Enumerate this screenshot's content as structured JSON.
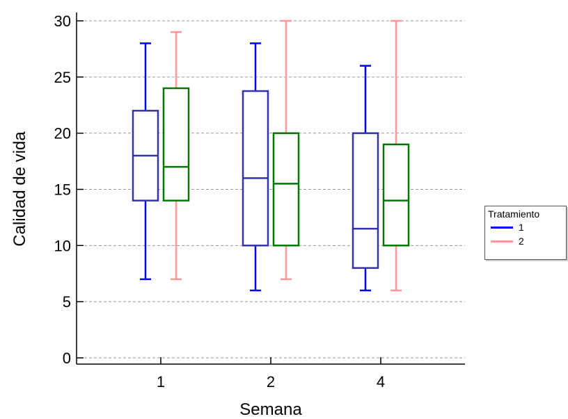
{
  "chart_data": {
    "type": "boxplot",
    "title": "",
    "xlabel": "Semana",
    "ylabel": "Calidad de vida",
    "categories": [
      "1",
      "2",
      "4"
    ],
    "ylim": [
      0,
      30
    ],
    "yticks": [
      0,
      5,
      10,
      15,
      20,
      25,
      30
    ],
    "grid": "horizontal dashed",
    "legend": {
      "title": "Tratamiento",
      "placement": "right"
    },
    "series": [
      {
        "name": "1",
        "whisker_color": "#0000FF",
        "box_color": "#3333AA",
        "boxes": [
          {
            "category": "1",
            "min": 7,
            "q1": 14,
            "median": 18,
            "q3": 22,
            "max": 28
          },
          {
            "category": "2",
            "min": 6,
            "q1": 10,
            "median": 16,
            "q3": 23.75,
            "max": 28
          },
          {
            "category": "4",
            "min": 6,
            "q1": 8,
            "median": 11.5,
            "q3": 20,
            "max": 26
          }
        ]
      },
      {
        "name": "2",
        "whisker_color": "#FF9999",
        "box_color": "#007700",
        "boxes": [
          {
            "category": "1",
            "min": 7,
            "q1": 14,
            "median": 17,
            "q3": 24,
            "max": 29
          },
          {
            "category": "2",
            "min": 7,
            "q1": 10,
            "median": 15.5,
            "q3": 20,
            "max": 30
          },
          {
            "category": "4",
            "min": 6,
            "q1": 10,
            "median": 14,
            "q3": 19,
            "max": 30
          }
        ]
      }
    ]
  }
}
